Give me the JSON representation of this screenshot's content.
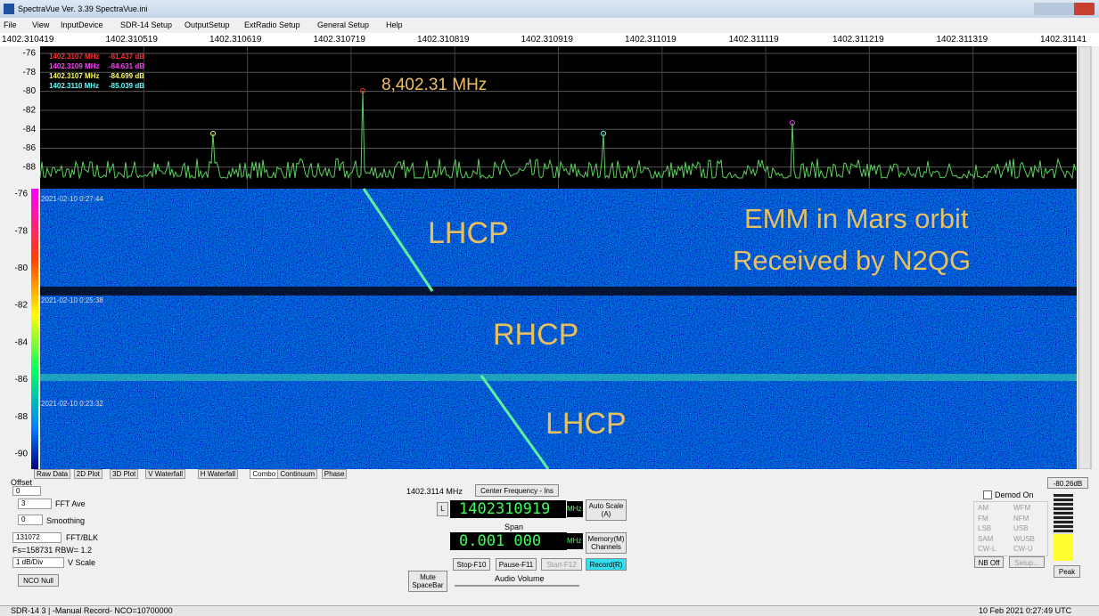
{
  "window": {
    "title": "SpectraVue Ver. 3.39  SpectraVue.ini",
    "menu": [
      "File",
      "View",
      "InputDevice",
      "SDR-14 Setup",
      "OutputSetup",
      "ExtRadio Setup",
      "General Setup",
      "Help"
    ]
  },
  "frequency_axis": [
    "1402.310419",
    "1402.310519",
    "1402.310619",
    "1402.310719",
    "1402.310819",
    "1402.310919",
    "1402.311019",
    "1402.311119",
    "1402.311219",
    "1402.311319",
    "1402.31141"
  ],
  "spectrum": {
    "y_labels": [
      "-76",
      "-78",
      "-80",
      "-82",
      "-84",
      "-86",
      "-88"
    ],
    "markers": [
      {
        "freq": "1402.3107 MHz",
        "level": "-81.437 dB",
        "color": "#ff3030"
      },
      {
        "freq": "1402.3109 MHz",
        "level": "-84.631 dB",
        "color": "#ff40ff"
      },
      {
        "freq": "1402.3107 MHz",
        "level": "-84.699 dB",
        "color": "#ffff60"
      },
      {
        "freq": "1402.3110 MHz",
        "level": "-85.039 dB",
        "color": "#60ffff"
      }
    ],
    "annotation": "8,402.31 MHz"
  },
  "waterfall": {
    "y_labels": [
      "-76",
      "-78",
      "-80",
      "-82",
      "-84",
      "-86",
      "-88",
      "-90"
    ],
    "timestamps": [
      "2021-02-10 0:27:44",
      "2021-02-10 0:25:38",
      "2021-02-10 0:23:32"
    ],
    "annotations": [
      "LHCP",
      "RHCP",
      "LHCP",
      "EMM in Mars orbit",
      "Received by N2QG"
    ]
  },
  "tabs": [
    "Raw Data",
    "2D Plot",
    "3D Plot",
    "V Waterfall",
    "H Waterfall",
    "Combo",
    "Continuum",
    "Phase"
  ],
  "controls": {
    "offset_label": "Offset",
    "offset": "0",
    "fft_ave": "3",
    "fft_ave_label": "FFT Ave",
    "smoothing": "0",
    "smoothing_label": "Smoothing",
    "fft_blk": "131072",
    "fft_blk_label": "FFT/BLK",
    "fs": "Fs=158731 RBW= 1.2",
    "vscale": "1 dB/Div",
    "vscale_label": "V Scale",
    "nco_null": "NCO Null",
    "cursor_freq": "1402.3114 MHz",
    "center_button": "Center Frequency - Ins",
    "l_button": "L",
    "center_freq": "1402310919",
    "mhz": "MHz",
    "span_label": "Span",
    "span": "0.001 000",
    "auto_scale": "Auto Scale (A)",
    "memory": "Memory(M) Channels",
    "stop": "Stop-F10",
    "pause": "Pause-F11",
    "start": "Start-F12",
    "record": "Record(R)",
    "mute": "Mute SpaceBar",
    "audio_volume": "Audio Volume",
    "demod_on": "Demod On",
    "modes": [
      "AM",
      "WFM",
      "FM",
      "NFM",
      "LSB",
      "USB",
      "SAM",
      "WUSB",
      "CW-L",
      "CW-U"
    ],
    "nb_off": "NB Off",
    "setup": "Setup...",
    "level": "-80.26dB",
    "peak": "Peak"
  },
  "status": {
    "left": "SDR-14 3  | -Manual Record-   NCO=10700000",
    "right": "10 Feb 2021  0:27:49 UTC"
  }
}
